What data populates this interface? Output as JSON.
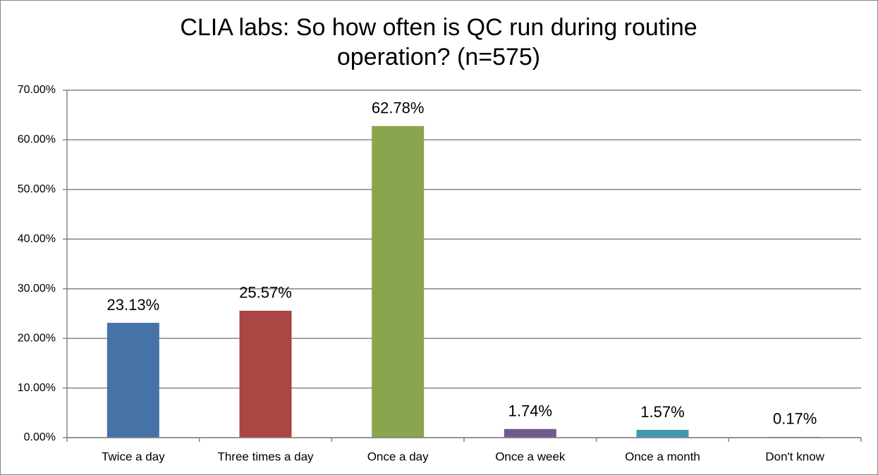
{
  "chart_data": {
    "type": "bar",
    "title": [
      "CLIA labs: So how often is QC run during routine",
      "operation? (n=575)"
    ],
    "categories": [
      "Twice a day",
      "Three times a day",
      "Once a day",
      "Once a week",
      "Once a month",
      "Don't know"
    ],
    "values": [
      23.13,
      25.57,
      62.78,
      1.74,
      1.57,
      0.17
    ],
    "value_labels": [
      "23.13%",
      "25.57%",
      "62.78%",
      "1.74%",
      "1.57%",
      "0.17%"
    ],
    "colors": [
      "#4572a7",
      "#aa4643",
      "#89a54e",
      "#71588f",
      "#4198af",
      "#db843d"
    ],
    "ylim": [
      0,
      70
    ],
    "yticks": [
      {
        "value": 0,
        "label": "0.00%"
      },
      {
        "value": 10,
        "label": "10.00%"
      },
      {
        "value": 20,
        "label": "20.00%"
      },
      {
        "value": 30,
        "label": "30.00%"
      },
      {
        "value": 40,
        "label": "40.00%"
      },
      {
        "value": 50,
        "label": "50.00%"
      },
      {
        "value": 60,
        "label": "60.00%"
      },
      {
        "value": 70,
        "label": "70.00%"
      }
    ],
    "grid": true
  }
}
